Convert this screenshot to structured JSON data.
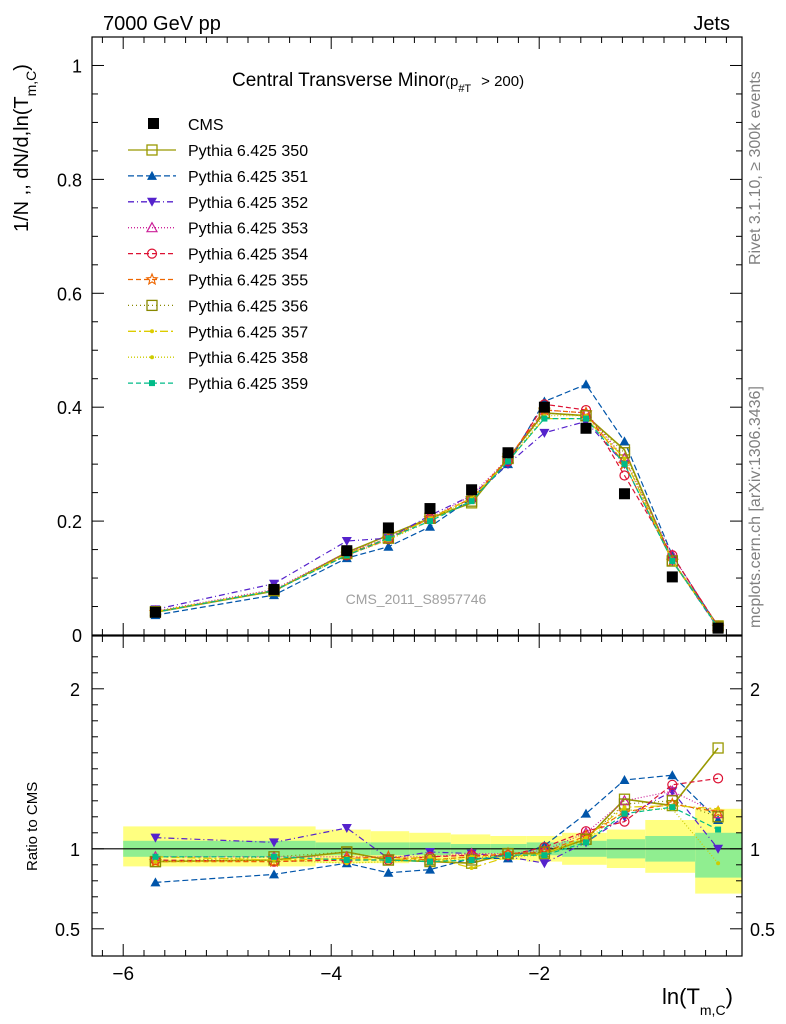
{
  "header": {
    "left": "7000 GeV pp",
    "right": "Jets",
    "title": "Central Transverse Minor",
    "title_sub_p": "p",
    "title_sub_sub": "#T",
    "title_suffix": "> 200)",
    "title_open": "(",
    "watermark": "CMS_2011_S8957746",
    "side_top": "Rivet 3.1.10, ≥ 300k events",
    "side_bottom": "mcplots.cern.ch [arXiv:1306.3436]"
  },
  "axes": {
    "ylabel_top": "1/N ,, dN/d,ln(T",
    "ylabel_top_sub": "m,C",
    "ylabel_top_close": ")",
    "ylabel_bottom": "Ratio to CMS",
    "xlabel": "ln(T",
    "xlabel_sub": "m,C",
    "xlabel_close": ")"
  },
  "colors": {
    "cms": "#000000",
    "band_green": "#90ee90",
    "band_yellow": "#ffff80"
  },
  "chart_data": {
    "type": "line",
    "x": [
      -5.69,
      -4.55,
      -3.85,
      -3.45,
      -3.05,
      -2.65,
      -2.3,
      -1.95,
      -1.55,
      -1.18,
      -0.72,
      -0.28
    ],
    "xlim": [
      -6.3,
      -0.05
    ],
    "xticks": [
      -6,
      -4,
      -2
    ],
    "xtick_labels": [
      "−6",
      "−4",
      "−2"
    ],
    "main": {
      "ylim": [
        0,
        1.05
      ],
      "yticks": [
        0,
        0.2,
        0.4,
        0.6,
        0.8,
        1
      ],
      "ytick_labels": [
        "0",
        "0.2",
        "0.4",
        "0.6",
        "0.8",
        "1"
      ]
    },
    "ratio": {
      "ylim": [
        0.33,
        2.33
      ],
      "yticks": [
        0.5,
        1,
        2
      ],
      "ytick_labels": [
        "0.5",
        "1",
        "2"
      ],
      "green_band": [
        [
          0.95,
          1.05
        ],
        [
          0.95,
          1.05
        ],
        [
          0.96,
          1.04
        ],
        [
          0.96,
          1.04
        ],
        [
          0.96,
          1.04
        ],
        [
          0.97,
          1.03
        ],
        [
          0.97,
          1.03
        ],
        [
          0.96,
          1.04
        ],
        [
          0.95,
          1.05
        ],
        [
          0.94,
          1.06
        ],
        [
          0.92,
          1.08
        ],
        [
          0.82,
          1.1
        ]
      ],
      "yellow_band": [
        [
          0.89,
          1.14
        ],
        [
          0.89,
          1.14
        ],
        [
          0.91,
          1.12
        ],
        [
          0.91,
          1.11
        ],
        [
          0.92,
          1.1
        ],
        [
          0.93,
          1.09
        ],
        [
          0.93,
          1.08
        ],
        [
          0.92,
          1.08
        ],
        [
          0.9,
          1.1
        ],
        [
          0.88,
          1.12
        ],
        [
          0.85,
          1.18
        ],
        [
          0.72,
          1.25
        ]
      ]
    },
    "cms": {
      "name": "CMS",
      "values": [
        0.04,
        0.08,
        0.148,
        0.188,
        0.222,
        0.255,
        0.32,
        0.4,
        0.363,
        0.248,
        0.102,
        0.012
      ]
    },
    "series": [
      {
        "name": "Pythia 6.425 350",
        "color": "#999900",
        "dash": "",
        "marker": "square-open",
        "values": [
          0.04,
          0.077,
          0.145,
          0.175,
          0.205,
          0.232,
          0.31,
          0.39,
          0.385,
          0.325,
          0.13,
          0.016
        ],
        "ratio": [
          0.92,
          0.93,
          0.98,
          0.93,
          0.92,
          0.91,
          0.97,
          0.97,
          1.06,
          1.31,
          1.27,
          1.63
        ]
      },
      {
        "name": "Pythia 6.425 351",
        "color": "#0055aa",
        "dash": "6,3",
        "marker": "triangle-up",
        "values": [
          0.035,
          0.07,
          0.135,
          0.155,
          0.19,
          0.24,
          0.3,
          0.41,
          0.44,
          0.34,
          0.14,
          0.014
        ],
        "ratio": [
          0.79,
          0.84,
          0.91,
          0.85,
          0.87,
          0.94,
          0.94,
          1.02,
          1.22,
          1.43,
          1.46,
          1.18
        ]
      },
      {
        "name": "Pythia 6.425 352",
        "color": "#5522cc",
        "dash": "6,3,1,3",
        "marker": "triangle-down",
        "values": [
          0.045,
          0.09,
          0.165,
          0.17,
          0.21,
          0.245,
          0.3,
          0.355,
          0.375,
          0.3,
          0.13,
          0.012
        ],
        "ratio": [
          1.07,
          1.04,
          1.13,
          0.94,
          0.98,
          0.97,
          0.95,
          0.91,
          1.04,
          1.2,
          1.36,
          1.0
        ]
      },
      {
        "name": "Pythia 6.425 353",
        "color": "#cc2299",
        "dash": "1,2",
        "marker": "triangle-open",
        "values": [
          0.042,
          0.08,
          0.145,
          0.17,
          0.205,
          0.245,
          0.31,
          0.395,
          0.39,
          0.31,
          0.14,
          0.015
        ],
        "ratio": [
          0.95,
          0.95,
          0.95,
          0.95,
          0.95,
          0.97,
          0.97,
          0.99,
          1.1,
          1.3,
          1.36,
          1.22
        ]
      },
      {
        "name": "Pythia 6.425 354",
        "color": "#dd1133",
        "dash": "5,3",
        "marker": "circle-open",
        "values": [
          0.04,
          0.078,
          0.14,
          0.168,
          0.205,
          0.24,
          0.305,
          0.405,
          0.395,
          0.28,
          0.14,
          0.015
        ],
        "ratio": [
          0.93,
          0.92,
          0.93,
          0.93,
          0.95,
          0.96,
          0.96,
          1.01,
          1.11,
          1.17,
          1.4,
          1.44
        ]
      },
      {
        "name": "Pythia 6.425 355",
        "color": "#ee6600",
        "dash": "5,3",
        "marker": "star-open",
        "values": [
          0.04,
          0.078,
          0.142,
          0.17,
          0.205,
          0.24,
          0.31,
          0.395,
          0.39,
          0.3,
          0.13,
          0.014
        ],
        "ratio": [
          0.92,
          0.92,
          0.94,
          0.95,
          0.93,
          0.95,
          0.97,
          0.98,
          1.08,
          1.23,
          1.28,
          1.23
        ]
      },
      {
        "name": "Pythia 6.425 356",
        "color": "#888800",
        "dash": "1,3",
        "marker": "square-open",
        "values": [
          0.041,
          0.078,
          0.143,
          0.17,
          0.205,
          0.235,
          0.31,
          0.39,
          0.385,
          0.32,
          0.13,
          0.014
        ],
        "ratio": [
          0.92,
          0.95,
          0.98,
          0.93,
          0.93,
          0.93,
          0.97,
          0.98,
          1.06,
          1.28,
          1.3,
          1.2
        ]
      },
      {
        "name": "Pythia 6.425 357",
        "color": "#ddcc00",
        "dash": "8,3,2,3",
        "marker": "dot",
        "values": [
          0.041,
          0.078,
          0.142,
          0.168,
          0.205,
          0.24,
          0.305,
          0.38,
          0.38,
          0.31,
          0.13,
          0.014
        ],
        "ratio": [
          0.95,
          0.93,
          0.94,
          0.93,
          0.95,
          0.88,
          0.95,
          0.97,
          1.07,
          1.26,
          1.27,
          1.25
        ]
      },
      {
        "name": "Pythia 6.425 358",
        "color": "#cccc00",
        "dash": "1,2",
        "marker": "dot",
        "values": [
          0.04,
          0.078,
          0.14,
          0.167,
          0.2,
          0.24,
          0.305,
          0.385,
          0.385,
          0.31,
          0.13,
          0.013
        ],
        "ratio": [
          0.92,
          0.93,
          0.91,
          0.92,
          0.93,
          0.95,
          0.95,
          0.96,
          1.05,
          1.24,
          1.25,
          0.91
        ]
      },
      {
        "name": "Pythia 6.425 359",
        "color": "#00bb88",
        "dash": "5,3",
        "marker": "square-solid",
        "values": [
          0.04,
          0.078,
          0.14,
          0.17,
          0.2,
          0.235,
          0.305,
          0.38,
          0.38,
          0.3,
          0.13,
          0.013
        ],
        "ratio": [
          0.95,
          0.95,
          0.93,
          0.93,
          0.92,
          0.93,
          0.96,
          0.96,
          1.04,
          1.22,
          1.26,
          1.12
        ]
      }
    ]
  }
}
